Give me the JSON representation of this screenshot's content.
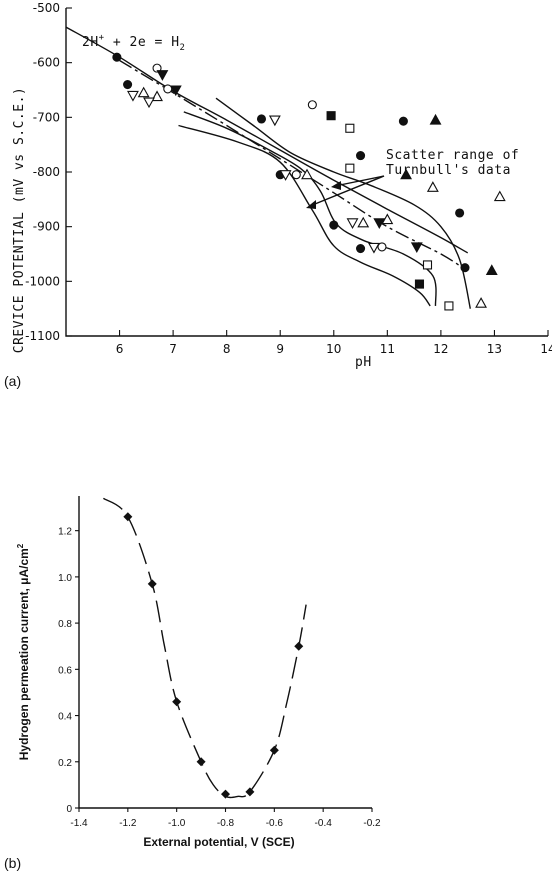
{
  "chart_data": [
    {
      "panel": "(a)",
      "type": "scatter",
      "xlabel": "pH",
      "ylabel": "CREVICE POTENTIAL (mV vs S.C.E.)",
      "xlim": [
        5,
        14
      ],
      "ylim": [
        -1100,
        -500
      ],
      "xticks": [
        "6",
        "7",
        "8",
        "9",
        "10",
        "11",
        "12",
        "13",
        "14"
      ],
      "yticks": [
        "-500",
        "-600",
        "-700",
        "-800",
        "-900",
        "-1000",
        "-1100"
      ],
      "equation": {
        "base": "2H",
        "sup": "+",
        "mid": " + 2e = H",
        "sub": "2"
      },
      "annotation": {
        "line1": "Scatter range of",
        "line2": "Turnbull's data"
      },
      "series": [
        {
          "marker": "filled-circle",
          "points": [
            [
              5.95,
              -590
            ],
            [
              6.15,
              -640
            ],
            [
              8.65,
              -703
            ],
            [
              9.0,
              -805
            ],
            [
              10.0,
              -897
            ],
            [
              10.5,
              -940
            ],
            [
              10.5,
              -770
            ],
            [
              11.3,
              -707
            ],
            [
              12.35,
              -875
            ],
            [
              12.45,
              -975
            ]
          ]
        },
        {
          "marker": "open-circle",
          "points": [
            [
              6.7,
              -610
            ],
            [
              6.9,
              -648
            ],
            [
              9.6,
              -677
            ],
            [
              9.3,
              -805
            ],
            [
              10.9,
              -937
            ]
          ]
        },
        {
          "marker": "open-triangle-up",
          "points": [
            [
              6.45,
              -655
            ],
            [
              6.7,
              -662
            ],
            [
              9.5,
              -805
            ],
            [
              10.55,
              -893
            ],
            [
              11.0,
              -887
            ],
            [
              11.85,
              -828
            ],
            [
              12.75,
              -1040
            ],
            [
              13.1,
              -845
            ]
          ]
        },
        {
          "marker": "open-triangle-down",
          "points": [
            [
              6.25,
              -660
            ],
            [
              6.55,
              -672
            ],
            [
              8.9,
              -705
            ],
            [
              9.1,
              -805
            ],
            [
              10.35,
              -893
            ],
            [
              10.75,
              -938
            ]
          ]
        },
        {
          "marker": "filled-triangle-down",
          "points": [
            [
              6.8,
              -622
            ],
            [
              7.05,
              -650
            ],
            [
              10.85,
              -893
            ],
            [
              11.55,
              -937
            ]
          ]
        },
        {
          "marker": "filled-triangle-up",
          "points": [
            [
              11.35,
              -805
            ],
            [
              11.9,
              -705
            ],
            [
              12.95,
              -980
            ]
          ]
        },
        {
          "marker": "open-square",
          "points": [
            [
              10.3,
              -720
            ],
            [
              10.3,
              -793
            ],
            [
              11.75,
              -970
            ],
            [
              12.15,
              -1045
            ]
          ]
        },
        {
          "marker": "filled-square",
          "points": [
            [
              9.95,
              -697
            ],
            [
              11.6,
              -1005
            ]
          ]
        }
      ],
      "lines": [
        {
          "name": "H2 equilibrium",
          "style": "solid",
          "points": [
            [
              5.0,
              -535
            ],
            [
              6.0,
              -590
            ],
            [
              7.0,
              -652
            ],
            [
              8.0,
              -705
            ],
            [
              9.0,
              -760
            ],
            [
              10.0,
              -815
            ],
            [
              11.0,
              -868
            ],
            [
              12.0,
              -920
            ],
            [
              12.5,
              -948
            ]
          ]
        },
        {
          "name": "trend",
          "style": "dash-dot",
          "points": [
            [
              6.0,
              -596
            ],
            [
              7.0,
              -655
            ],
            [
              8.0,
              -715
            ],
            [
              9.0,
              -776
            ],
            [
              10.0,
              -838
            ],
            [
              11.0,
              -900
            ],
            [
              12.0,
              -950
            ],
            [
              12.45,
              -978
            ]
          ]
        },
        {
          "name": "scatter-upper",
          "style": "solid",
          "points": [
            [
              7.8,
              -665
            ],
            [
              8.5,
              -715
            ],
            [
              9.2,
              -765
            ],
            [
              10.0,
              -800
            ],
            [
              10.7,
              -825
            ],
            [
              11.5,
              -860
            ],
            [
              12.0,
              -900
            ],
            [
              12.35,
              -960
            ],
            [
              12.55,
              -1050
            ]
          ]
        },
        {
          "name": "scatter-lower",
          "style": "solid",
          "points": [
            [
              7.2,
              -690
            ],
            [
              8.0,
              -720
            ],
            [
              8.8,
              -760
            ],
            [
              9.4,
              -795
            ],
            [
              9.75,
              -835
            ],
            [
              10.05,
              -895
            ],
            [
              10.55,
              -925
            ],
            [
              11.3,
              -950
            ],
            [
              11.85,
              -990
            ],
            [
              11.9,
              -1045
            ]
          ]
        },
        {
          "name": "scatter-inner",
          "style": "solid",
          "points": [
            [
              7.1,
              -715
            ],
            [
              8.2,
              -745
            ],
            [
              9.0,
              -782
            ],
            [
              9.6,
              -870
            ],
            [
              10.0,
              -935
            ],
            [
              10.5,
              -965
            ],
            [
              11.1,
              -990
            ],
            [
              11.6,
              -1020
            ],
            [
              11.8,
              -1045
            ]
          ]
        }
      ]
    },
    {
      "panel": "(b)",
      "type": "scatter",
      "xlabel": "External potential, V (SCE)",
      "ylabel": "Hydrogen permeation current, μA/cm",
      "ylabel_sup": "2",
      "xlim": [
        -1.4,
        -0.2
      ],
      "ylim": [
        0,
        1.35
      ],
      "xticks": [
        "-1.4",
        "-1.2",
        "-1.0",
        "-0.8",
        "-0.6",
        "-0.4",
        "-0.2"
      ],
      "yticks": [
        "0",
        "0.2",
        "0.4",
        "0.6",
        "0.8",
        "1.0",
        "1.2"
      ],
      "points": [
        [
          -1.2,
          1.26
        ],
        [
          -1.1,
          0.97
        ],
        [
          -1.0,
          0.46
        ],
        [
          -0.9,
          0.2
        ],
        [
          -0.8,
          0.06
        ],
        [
          -0.7,
          0.07
        ],
        [
          -0.6,
          0.25
        ],
        [
          -0.5,
          0.7
        ]
      ],
      "curve": [
        [
          -1.3,
          1.34
        ],
        [
          -1.2,
          1.26
        ],
        [
          -1.1,
          0.97
        ],
        [
          -1.05,
          0.7
        ],
        [
          -1.0,
          0.46
        ],
        [
          -0.9,
          0.2
        ],
        [
          -0.85,
          0.1
        ],
        [
          -0.8,
          0.05
        ],
        [
          -0.75,
          0.05
        ],
        [
          -0.7,
          0.07
        ],
        [
          -0.6,
          0.25
        ],
        [
          -0.55,
          0.45
        ],
        [
          -0.5,
          0.7
        ],
        [
          -0.47,
          0.88
        ]
      ]
    }
  ]
}
